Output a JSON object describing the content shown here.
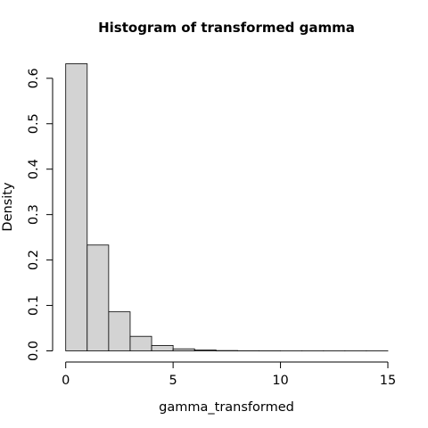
{
  "chart_data": {
    "type": "bar",
    "subtype": "histogram",
    "title": "Histogram of transformed gamma",
    "xlabel": "gamma_transformed",
    "ylabel": "Density",
    "bin_edges": [
      0,
      1,
      2,
      3,
      4,
      5,
      6,
      7,
      8,
      9,
      10,
      11,
      12,
      13,
      14,
      15
    ],
    "values": [
      0.632,
      0.233,
      0.086,
      0.032,
      0.012,
      0.0045,
      0.0018,
      0.0007,
      0.0003,
      0.0002,
      0.0001,
      0.0001,
      0.0001,
      0.0001,
      0.0001
    ],
    "xlim": [
      0,
      15
    ],
    "ylim": [
      0,
      0.632
    ],
    "x_ticks": [
      0,
      5,
      10,
      15
    ],
    "x_tick_labels": [
      "0",
      "5",
      "10",
      "15"
    ],
    "y_ticks": [
      0,
      0.1,
      0.2,
      0.3,
      0.4,
      0.5,
      0.6
    ],
    "y_tick_labels": [
      "0.0",
      "0.1",
      "0.2",
      "0.3",
      "0.4",
      "0.5",
      "0.6"
    ],
    "colors": {
      "bar_fill": "#d3d3d3",
      "bar_stroke": "#000000",
      "axis": "#000000"
    },
    "grid": false,
    "legend": "none"
  }
}
